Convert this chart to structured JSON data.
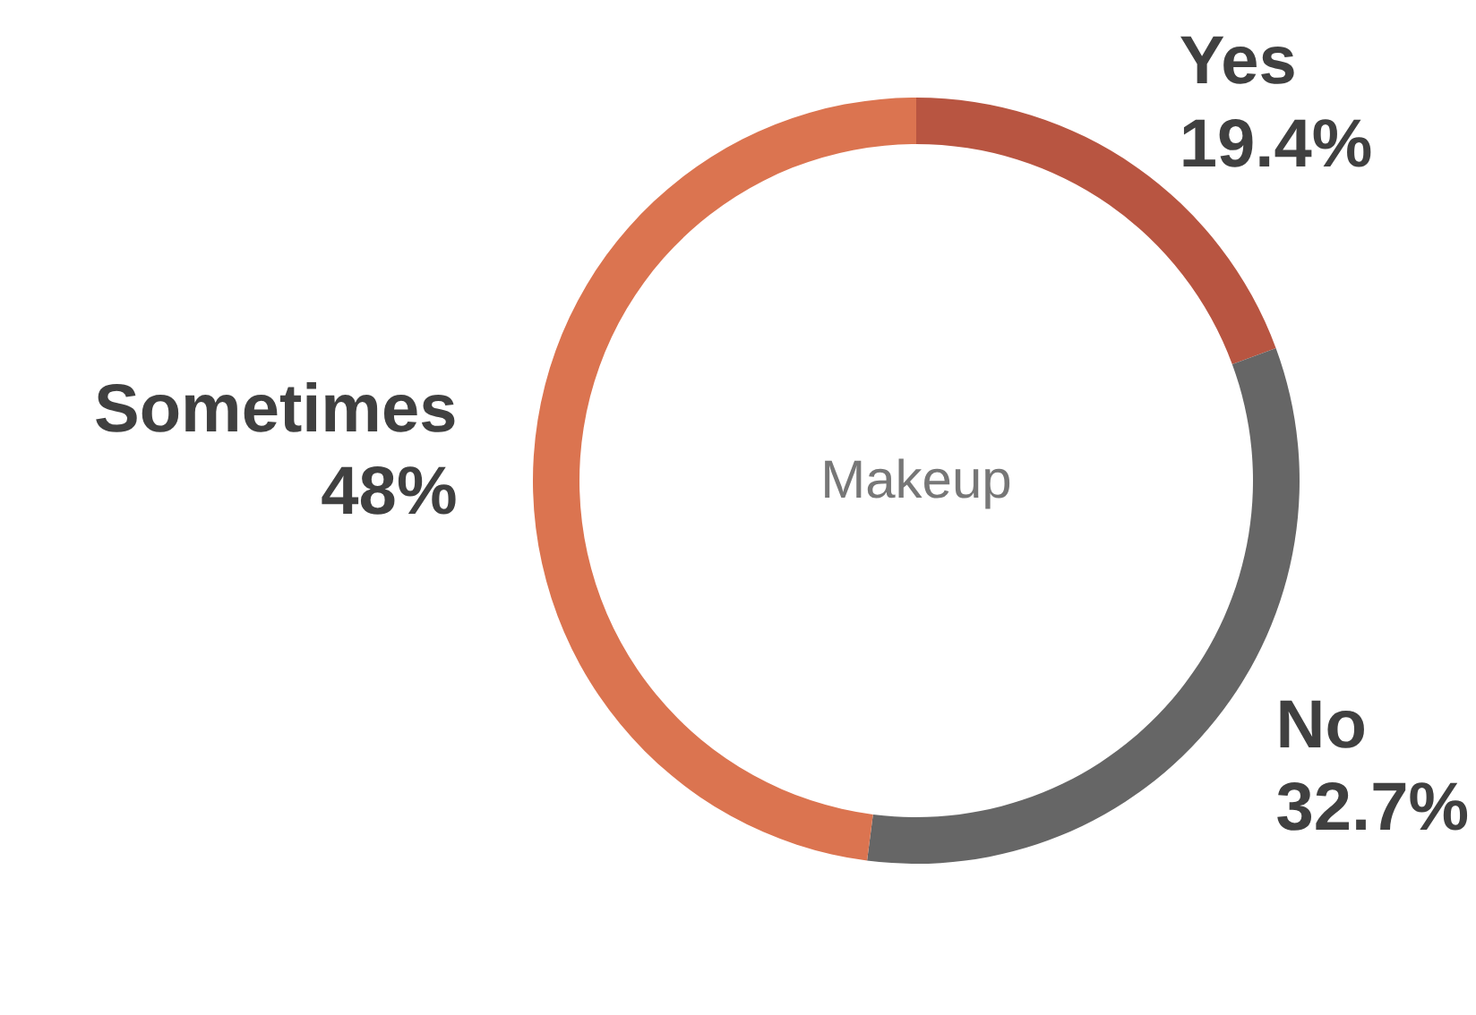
{
  "chart_data": {
    "type": "donut",
    "title": "Makeup",
    "categories": [
      "Yes",
      "No",
      "Sometimes"
    ],
    "values": [
      19.4,
      32.7,
      48
    ],
    "value_labels": [
      "19.4%",
      "32.7%",
      "48%"
    ],
    "colors": [
      "#b85541",
      "#666666",
      "#db7450"
    ]
  }
}
